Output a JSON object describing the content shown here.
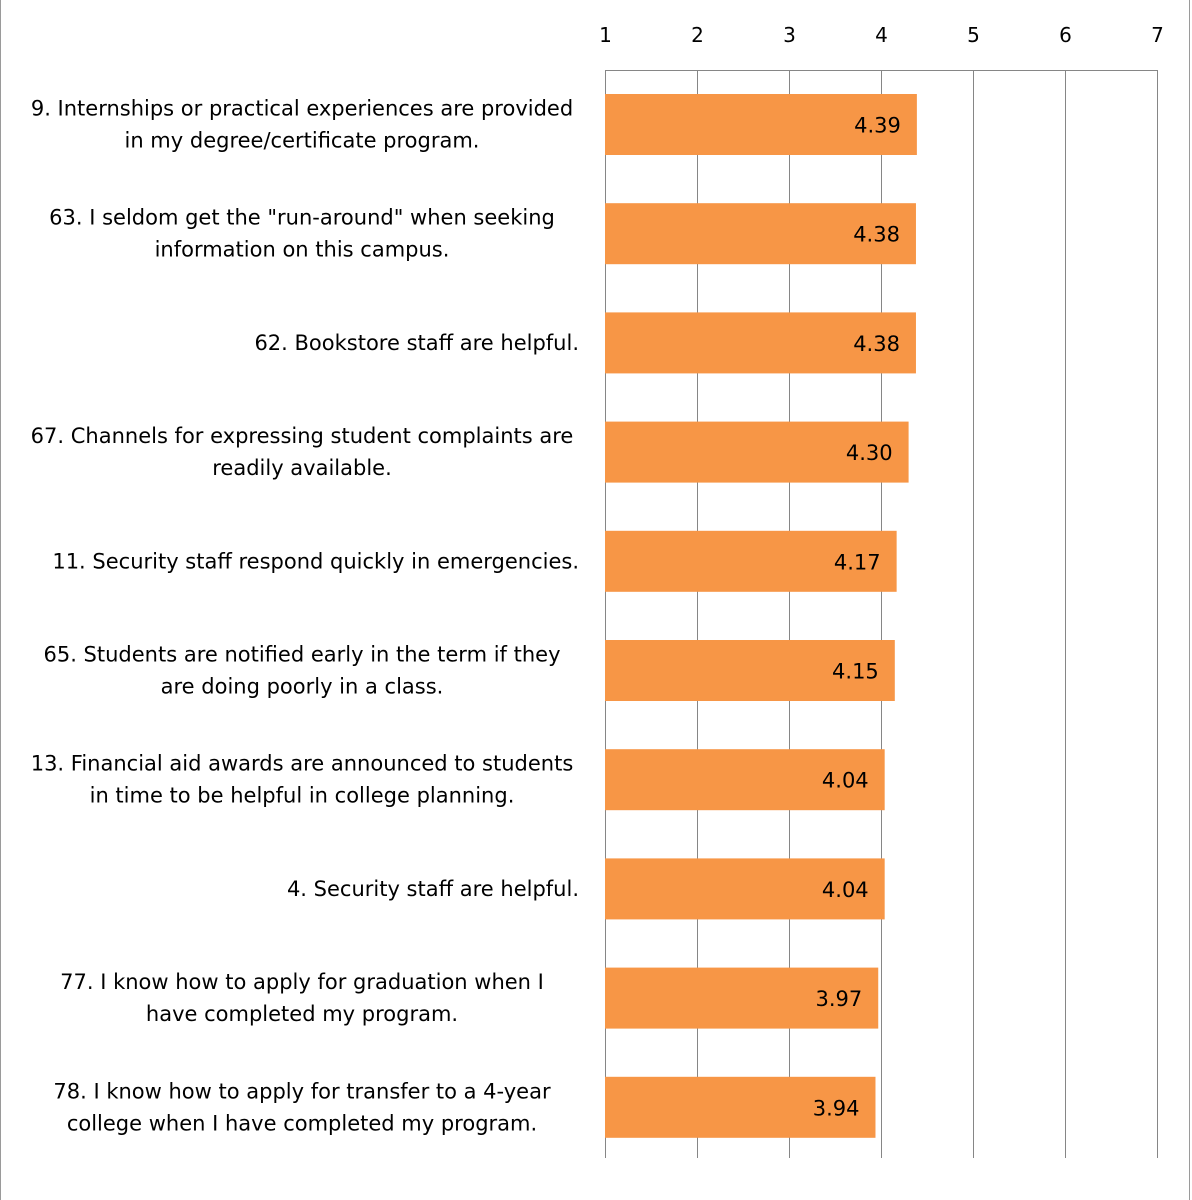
{
  "chart_data": {
    "type": "bar",
    "orientation": "horizontal",
    "xlim": [
      1,
      7
    ],
    "ticks": [
      "1",
      "2",
      "3",
      "4",
      "5",
      "6",
      "7"
    ],
    "grid": true,
    "bar_color": "#f79646",
    "categories": [
      [
        "9. Internships or practical experiences are provided",
        "in my degree/certificate  program."
      ],
      [
        "63. I seldom get the \"run-around\"  when seeking",
        "information on this campus."
      ],
      [
        "62. Bookstore staff are helpful."
      ],
      [
        "67. Channels for expressing student complaints are",
        "readily available."
      ],
      [
        "11. Security staff respond quickly in emergencies."
      ],
      [
        "65. Students are notified early in the term if they",
        "are doing poorly in a class."
      ],
      [
        "13. Financial aid awards are announced to students",
        "in time to be helpful in college planning."
      ],
      [
        "4. Security staff are helpful."
      ],
      [
        "77. I know how to apply for graduation when I",
        "have completed my program."
      ],
      [
        "78. I know how to apply for transfer to a 4-year",
        "college when I have completed my program."
      ]
    ],
    "values": [
      4.39,
      4.38,
      4.38,
      4.3,
      4.17,
      4.15,
      4.04,
      4.04,
      3.97,
      3.94
    ],
    "value_labels": [
      "4.39",
      "4.38",
      "4.38",
      "4.30",
      "4.17",
      "4.15",
      "4.04",
      "4.04",
      "3.97",
      "3.94"
    ]
  }
}
